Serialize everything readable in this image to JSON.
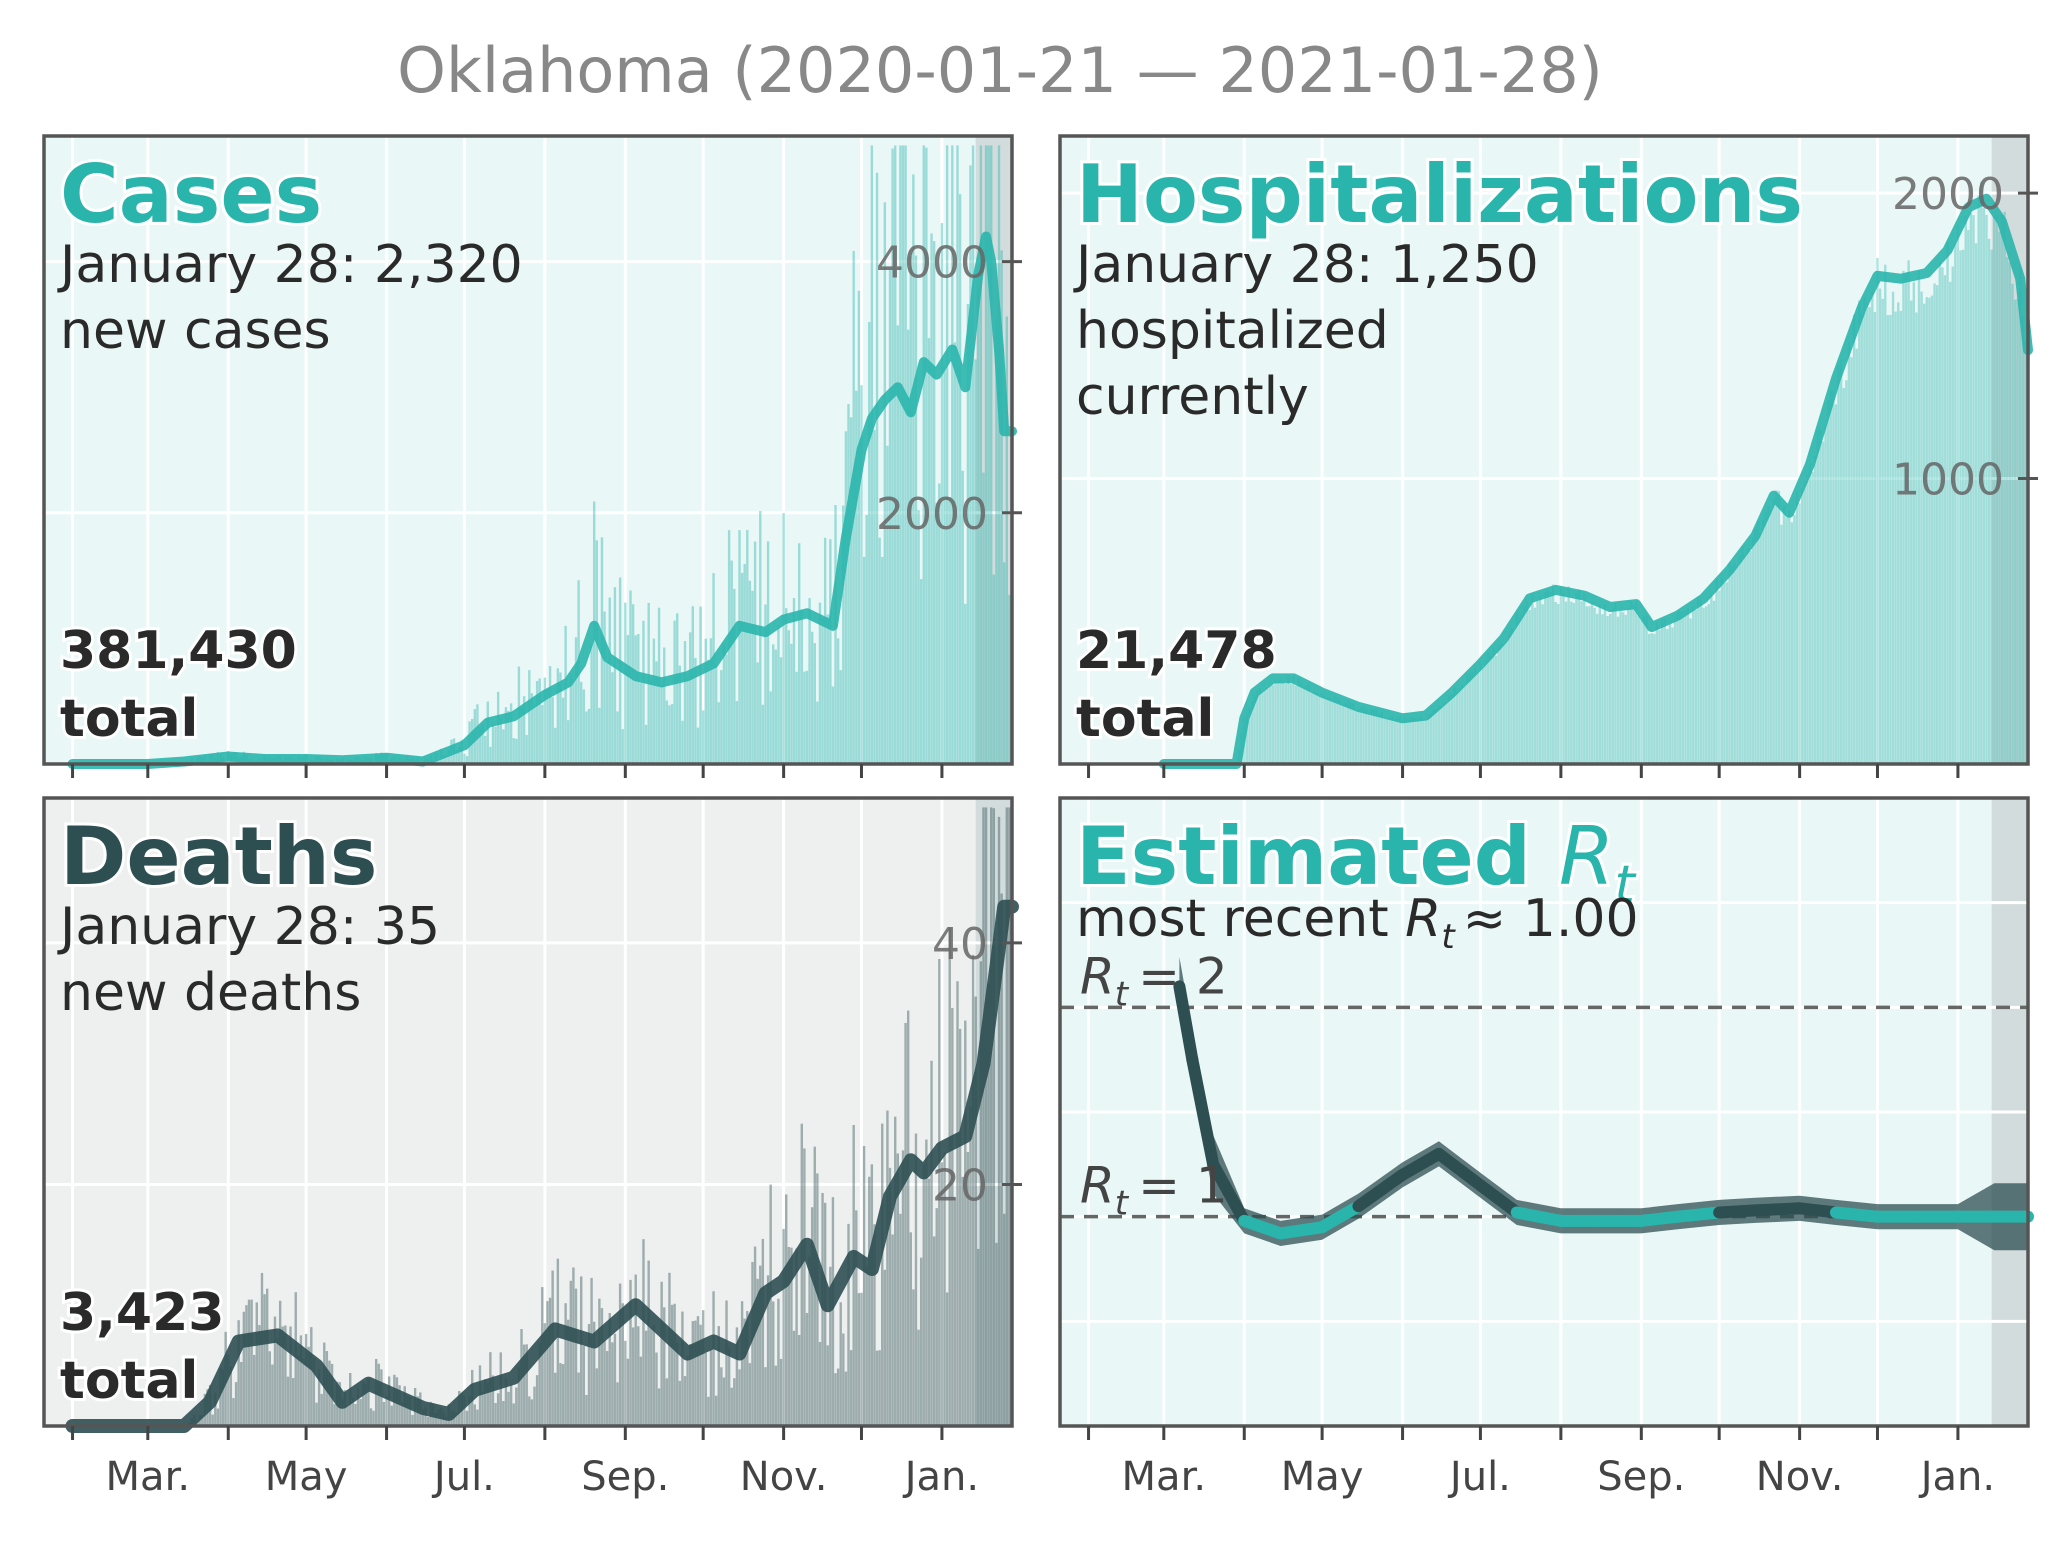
{
  "title": "Oklahoma (2020-01-21 — 2021-01-28)",
  "x_tick_labels": [
    "Mar.",
    "May",
    "Jul.",
    "Sep.",
    "Nov.",
    "Jan."
  ],
  "colors": {
    "teal": "#2ab5ac",
    "dark": "#2e4f52",
    "panel_bg_light": "#eaf7f7",
    "panel_bg_gray": "#eef0f0",
    "shade": "#d3dcdc"
  },
  "panels": {
    "cases": {
      "title": "Cases",
      "sub1": "January 28: 2,320",
      "sub2": "new cases",
      "total1": "381,430",
      "total2": "total",
      "yticks": [
        "2000",
        "4000"
      ]
    },
    "hosp": {
      "title": "Hospitalizations",
      "sub1": "January 28: 1,250",
      "sub2": "hospitalized",
      "sub3": "currently",
      "total1": "21,478",
      "total2": "total",
      "yticks": [
        "1000",
        "2000"
      ]
    },
    "deaths": {
      "title": "Deaths",
      "sub1": "January 28: 35",
      "sub2": "new deaths",
      "total1": "3,423",
      "total2": "total",
      "yticks": [
        "20",
        "40"
      ]
    },
    "rt": {
      "title": "Estimated",
      "title_sym": "R",
      "title_sub": "t",
      "sub_prefix": "most recent",
      "sub_sym": "R",
      "sub_sub": "t",
      "sub_suffix": "≈ 1.00",
      "ref_lines": [
        {
          "sym": "R",
          "sub": "t",
          "text": "= 2",
          "value": 2
        },
        {
          "sym": "R",
          "sub": "t",
          "text": "= 1",
          "value": 1
        }
      ]
    }
  },
  "chart_data": [
    {
      "type": "bar",
      "name": "cases",
      "x_range": [
        "2020-01-21",
        "2021-01-28"
      ],
      "ylim": [
        0,
        5000
      ],
      "avg_points": [
        [
          "2020-02-01",
          0
        ],
        [
          "2020-03-01",
          0
        ],
        [
          "2020-03-15",
          20
        ],
        [
          "2020-04-01",
          60
        ],
        [
          "2020-04-15",
          40
        ],
        [
          "2020-05-01",
          40
        ],
        [
          "2020-05-15",
          30
        ],
        [
          "2020-06-01",
          50
        ],
        [
          "2020-06-15",
          20
        ],
        [
          "2020-07-01",
          150
        ],
        [
          "2020-07-10",
          330
        ],
        [
          "2020-07-20",
          380
        ],
        [
          "2020-08-01",
          550
        ],
        [
          "2020-08-10",
          650
        ],
        [
          "2020-08-15",
          800
        ],
        [
          "2020-08-20",
          1100
        ],
        [
          "2020-08-25",
          850
        ],
        [
          "2020-09-05",
          700
        ],
        [
          "2020-09-15",
          650
        ],
        [
          "2020-09-25",
          700
        ],
        [
          "2020-10-05",
          800
        ],
        [
          "2020-10-15",
          1100
        ],
        [
          "2020-10-25",
          1050
        ],
        [
          "2020-11-01",
          1150
        ],
        [
          "2020-11-10",
          1200
        ],
        [
          "2020-11-20",
          1100
        ],
        [
          "2020-11-25",
          1800
        ],
        [
          "2020-12-01",
          2500
        ],
        [
          "2020-12-05",
          2750
        ],
        [
          "2020-12-10",
          2900
        ],
        [
          "2020-12-15",
          3000
        ],
        [
          "2020-12-20",
          2800
        ],
        [
          "2020-12-25",
          3200
        ],
        [
          "2020-12-30",
          3100
        ],
        [
          "2021-01-05",
          3300
        ],
        [
          "2021-01-10",
          3000
        ],
        [
          "2021-01-15",
          3900
        ],
        [
          "2021-01-18",
          4200
        ],
        [
          "2021-01-20",
          4000
        ],
        [
          "2021-01-23",
          3300
        ],
        [
          "2021-01-25",
          2650
        ],
        [
          "2021-01-28",
          2650
        ]
      ],
      "last_value": 2320
    },
    {
      "type": "bar",
      "name": "hospitalizations",
      "x_range": [
        "2020-01-21",
        "2021-01-28"
      ],
      "ylim": [
        0,
        2200
      ],
      "avg_points": [
        [
          "2020-03-01",
          0
        ],
        [
          "2020-03-29",
          0
        ],
        [
          "2020-04-01",
          160
        ],
        [
          "2020-04-05",
          250
        ],
        [
          "2020-04-12",
          300
        ],
        [
          "2020-04-20",
          300
        ],
        [
          "2020-05-01",
          250
        ],
        [
          "2020-05-15",
          200
        ],
        [
          "2020-06-01",
          160
        ],
        [
          "2020-06-10",
          170
        ],
        [
          "2020-06-20",
          250
        ],
        [
          "2020-07-01",
          350
        ],
        [
          "2020-07-10",
          440
        ],
        [
          "2020-07-20",
          580
        ],
        [
          "2020-07-30",
          610
        ],
        [
          "2020-08-10",
          590
        ],
        [
          "2020-08-20",
          550
        ],
        [
          "2020-08-30",
          560
        ],
        [
          "2020-09-05",
          480
        ],
        [
          "2020-09-15",
          520
        ],
        [
          "2020-09-25",
          580
        ],
        [
          "2020-10-05",
          680
        ],
        [
          "2020-10-15",
          800
        ],
        [
          "2020-10-22",
          940
        ],
        [
          "2020-10-28",
          880
        ],
        [
          "2020-11-05",
          1050
        ],
        [
          "2020-11-15",
          1350
        ],
        [
          "2020-11-25",
          1600
        ],
        [
          "2020-12-01",
          1710
        ],
        [
          "2020-12-10",
          1700
        ],
        [
          "2020-12-20",
          1720
        ],
        [
          "2020-12-28",
          1800
        ],
        [
          "2021-01-05",
          1950
        ],
        [
          "2021-01-12",
          1980
        ],
        [
          "2021-01-18",
          1900
        ],
        [
          "2021-01-25",
          1700
        ],
        [
          "2021-01-28",
          1450
        ]
      ],
      "last_value": 1250
    },
    {
      "type": "bar",
      "name": "deaths",
      "x_range": [
        "2020-01-21",
        "2021-01-28"
      ],
      "ylim": [
        0,
        52
      ],
      "avg_points": [
        [
          "2020-02-01",
          0
        ],
        [
          "2020-03-15",
          0
        ],
        [
          "2020-03-25",
          2
        ],
        [
          "2020-04-05",
          7
        ],
        [
          "2020-04-20",
          7.5
        ],
        [
          "2020-05-05",
          5
        ],
        [
          "2020-05-15",
          2
        ],
        [
          "2020-05-25",
          3.5
        ],
        [
          "2020-06-15",
          1.5
        ],
        [
          "2020-06-25",
          1
        ],
        [
          "2020-07-05",
          3
        ],
        [
          "2020-07-20",
          4
        ],
        [
          "2020-08-05",
          8
        ],
        [
          "2020-08-20",
          7
        ],
        [
          "2020-09-05",
          10
        ],
        [
          "2020-09-15",
          8
        ],
        [
          "2020-09-25",
          6
        ],
        [
          "2020-10-05",
          7
        ],
        [
          "2020-10-15",
          6
        ],
        [
          "2020-10-25",
          11
        ],
        [
          "2020-11-01",
          12
        ],
        [
          "2020-11-10",
          15
        ],
        [
          "2020-11-18",
          10
        ],
        [
          "2020-11-28",
          14
        ],
        [
          "2020-12-05",
          13
        ],
        [
          "2020-12-12",
          19
        ],
        [
          "2020-12-20",
          22
        ],
        [
          "2020-12-25",
          21
        ],
        [
          "2021-01-01",
          23
        ],
        [
          "2021-01-10",
          24
        ],
        [
          "2021-01-17",
          30
        ],
        [
          "2021-01-22",
          38
        ],
        [
          "2021-01-25",
          43
        ],
        [
          "2021-01-28",
          43
        ]
      ],
      "last_value": 35
    },
    {
      "type": "line",
      "name": "Rt",
      "x_range": [
        "2020-01-21",
        "2021-01-28"
      ],
      "ylim": [
        0,
        3.0
      ],
      "points": [
        [
          "2020-03-07",
          2.1
        ],
        [
          "2020-03-12",
          1.75
        ],
        [
          "2020-03-20",
          1.25
        ],
        [
          "2020-04-01",
          0.98
        ],
        [
          "2020-04-15",
          0.92
        ],
        [
          "2020-05-01",
          0.95
        ],
        [
          "2020-05-15",
          1.05
        ],
        [
          "2020-06-01",
          1.2
        ],
        [
          "2020-06-15",
          1.3
        ],
        [
          "2020-07-01",
          1.15
        ],
        [
          "2020-07-15",
          1.02
        ],
        [
          "2020-08-01",
          0.98
        ],
        [
          "2020-08-15",
          0.98
        ],
        [
          "2020-09-01",
          0.98
        ],
        [
          "2020-09-15",
          1.0
        ],
        [
          "2020-10-01",
          1.02
        ],
        [
          "2020-10-15",
          1.03
        ],
        [
          "2020-11-01",
          1.04
        ],
        [
          "2020-11-15",
          1.02
        ],
        [
          "2020-12-01",
          1.0
        ],
        [
          "2020-12-15",
          1.0
        ],
        [
          "2021-01-01",
          1.0
        ],
        [
          "2021-01-15",
          1.0
        ],
        [
          "2021-01-28",
          1.0
        ]
      ],
      "reference_lines": [
        1,
        2
      ],
      "most_recent": 1.0
    }
  ]
}
